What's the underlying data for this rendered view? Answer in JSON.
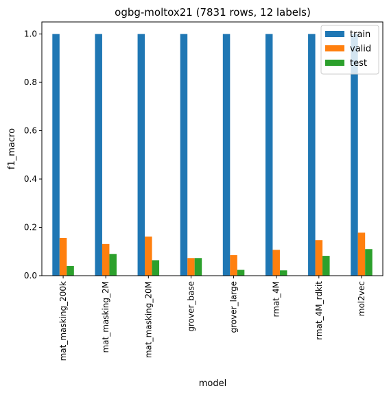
{
  "chart_data": {
    "type": "bar",
    "title": "ogbg-moltox21 (7831 rows, 12 labels)",
    "xlabel": "model",
    "ylabel": "f1_macro",
    "categories": [
      "mat_masking_200k",
      "mat_masking_2M",
      "mat_masking_20M",
      "grover_base",
      "grover_large",
      "rmat_4M",
      "rmat_4M_rdkit",
      "mol2vec"
    ],
    "series": [
      {
        "name": "train",
        "color": "#1f77b4",
        "values": [
          1.0,
          1.0,
          1.0,
          1.0,
          1.0,
          1.0,
          1.0,
          1.0
        ]
      },
      {
        "name": "valid",
        "color": "#ff7f0e",
        "values": [
          0.156,
          0.131,
          0.162,
          0.073,
          0.085,
          0.107,
          0.147,
          0.178
        ]
      },
      {
        "name": "test",
        "color": "#2ca02c",
        "values": [
          0.04,
          0.09,
          0.064,
          0.073,
          0.024,
          0.022,
          0.082,
          0.11
        ]
      }
    ],
    "ylim": [
      0,
      1.05
    ],
    "yticks": [
      0.0,
      0.2,
      0.4,
      0.6,
      0.8,
      1.0
    ],
    "ytick_labels": [
      "0.0",
      "0.2",
      "0.4",
      "0.6",
      "0.8",
      "1.0"
    ],
    "grid": false,
    "legend_position": "top-right"
  }
}
